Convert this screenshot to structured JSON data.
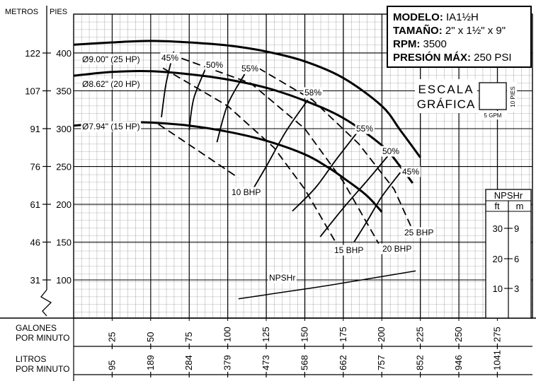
{
  "chart_data": {
    "type": "line",
    "info_box": {
      "model_label": "MODELO:",
      "model_value": "IA1½H",
      "size_label": "TAMAÑO:",
      "size_value": "2\" x 1½\" x 9\"",
      "rpm_label": "RPM:",
      "rpm_value": "3500",
      "pressure_label": "PRESIÓN MÁX:",
      "pressure_value": "250 PSI"
    },
    "y_axis_titles": {
      "meters": "METROS",
      "feet": "PIES"
    },
    "x_axis_titles": {
      "gpm": "GALONES\nPOR MINUTO",
      "lpm": "LITROS\nPOR MINUTO"
    },
    "x_ticks_gpm": [
      {
        "v": 25,
        "label": "25"
      },
      {
        "v": 50,
        "label": "50"
      },
      {
        "v": 75,
        "label": "75"
      },
      {
        "v": 100,
        "label": "100"
      },
      {
        "v": 125,
        "label": "125"
      },
      {
        "v": 150,
        "label": "150"
      },
      {
        "v": 175,
        "label": "175"
      },
      {
        "v": 200,
        "label": "200"
      },
      {
        "v": 225,
        "label": "225"
      },
      {
        "v": 250,
        "label": "250"
      },
      {
        "v": 275,
        "label": "275"
      }
    ],
    "x_ticks_lpm": [
      {
        "v": 25,
        "label": "95"
      },
      {
        "v": 50,
        "label": "189"
      },
      {
        "v": 75,
        "label": "284"
      },
      {
        "v": 100,
        "label": "379"
      },
      {
        "v": 125,
        "label": "473"
      },
      {
        "v": 150,
        "label": "568"
      },
      {
        "v": 175,
        "label": "662"
      },
      {
        "v": 200,
        "label": "757"
      },
      {
        "v": 225,
        "label": "852"
      },
      {
        "v": 250,
        "label": "946"
      },
      {
        "v": 275,
        "label": "1041"
      }
    ],
    "y_ticks": [
      {
        "ft": 100,
        "ft_label": "100",
        "m_label": "31"
      },
      {
        "ft": 150,
        "ft_label": "150",
        "m_label": "46"
      },
      {
        "ft": 200,
        "ft_label": "200",
        "m_label": "61"
      },
      {
        "ft": 250,
        "ft_label": "250",
        "m_label": "76"
      },
      {
        "ft": 300,
        "ft_label": "300",
        "m_label": "91"
      },
      {
        "ft": 350,
        "ft_label": "350",
        "m_label": "107"
      },
      {
        "ft": 400,
        "ft_label": "400",
        "m_label": "122"
      }
    ],
    "xlim": [
      0,
      295
    ],
    "ylim": [
      30,
      440
    ],
    "impeller_curves": [
      {
        "name": "Ø9.00\" (25 HP)",
        "points": [
          [
            0,
            411
          ],
          [
            25,
            414
          ],
          [
            50,
            416
          ],
          [
            75,
            414
          ],
          [
            100,
            410
          ],
          [
            125,
            402
          ],
          [
            150,
            389
          ],
          [
            175,
            367
          ],
          [
            200,
            330
          ],
          [
            212,
            298
          ],
          [
            225,
            262
          ]
        ]
      },
      {
        "name": "Ø8.62\" (20 HP)",
        "points": [
          [
            0,
            370
          ],
          [
            25,
            375
          ],
          [
            50,
            376
          ],
          [
            75,
            372
          ],
          [
            100,
            365
          ],
          [
            125,
            354
          ],
          [
            150,
            337
          ],
          [
            175,
            314
          ],
          [
            200,
            278
          ],
          [
            212,
            250
          ],
          [
            220,
            228
          ]
        ]
      },
      {
        "name": "Ø7.94\" (15 HP)",
        "points": [
          [
            0,
            304
          ],
          [
            25,
            308
          ],
          [
            50,
            308
          ],
          [
            75,
            304
          ],
          [
            100,
            296
          ],
          [
            125,
            284
          ],
          [
            150,
            266
          ],
          [
            165,
            249
          ],
          [
            175,
            235
          ],
          [
            190,
            212
          ],
          [
            200,
            190
          ]
        ]
      }
    ],
    "efficiency_curves": [
      {
        "name": "45%",
        "points": [
          [
            65,
            402
          ],
          [
            60,
            360
          ],
          [
            57,
            315
          ]
        ]
      },
      {
        "name": "50%",
        "points": [
          [
            86,
            381
          ],
          [
            78,
            340
          ],
          [
            75,
            298
          ]
        ]
      },
      {
        "name": "55%",
        "points": [
          [
            111,
            372
          ],
          [
            100,
            332
          ],
          [
            93,
            282
          ]
        ]
      },
      {
        "name": "58%",
        "points": [
          [
            152,
            338
          ],
          [
            138,
            297
          ],
          [
            125,
            250
          ],
          [
            114,
            212
          ]
        ]
      },
      {
        "name": "55%",
        "points": [
          [
            186,
            300
          ],
          [
            170,
            258
          ],
          [
            157,
            222
          ],
          [
            142,
            191
          ]
        ]
      },
      {
        "name": "50%",
        "points": [
          [
            204,
            264
          ],
          [
            190,
            230
          ],
          [
            175,
            195
          ],
          [
            160,
            157
          ]
        ]
      },
      {
        "name": "45%",
        "points": [
          [
            212,
            242
          ],
          [
            200,
            210
          ],
          [
            190,
            176
          ],
          [
            182,
            150
          ]
        ]
      }
    ],
    "bhp_curves": [
      {
        "name": "10 BHP",
        "points": [
          [
            55,
            306
          ],
          [
            80,
            272
          ],
          [
            107,
            235
          ]
        ]
      },
      {
        "name": "15 BHP",
        "points": [
          [
            58,
            380
          ],
          [
            100,
            330
          ],
          [
            130,
            275
          ],
          [
            150,
            220
          ],
          [
            170,
            150
          ]
        ]
      },
      {
        "name": "20 BHP",
        "points": [
          [
            70,
            393
          ],
          [
            115,
            360
          ],
          [
            150,
            300
          ],
          [
            175,
            230
          ],
          [
            198,
            148
          ]
        ]
      },
      {
        "name": "25 BHP",
        "points": [
          [
            120,
            380
          ],
          [
            155,
            338
          ],
          [
            185,
            280
          ],
          [
            208,
            220
          ],
          [
            220,
            166
          ]
        ]
      }
    ],
    "npshr_curve": {
      "name": "NPSHr",
      "points": [
        [
          107,
          75
        ],
        [
          130,
          82
        ],
        [
          160,
          91
        ],
        [
          190,
          101
        ],
        [
          222,
          112
        ]
      ]
    },
    "npshr_inset": {
      "title": "NPSHr",
      "col_ft": "ft",
      "col_m": "m",
      "rows": [
        {
          "ft": "30",
          "m": "9"
        },
        {
          "ft": "20",
          "m": "6"
        },
        {
          "ft": "10",
          "m": "3"
        }
      ]
    },
    "scale_box": {
      "label1": "ESCALA",
      "label2": "GRÁFICA",
      "side_label": "10 PIES",
      "bottom_label": "5 GPM"
    }
  }
}
